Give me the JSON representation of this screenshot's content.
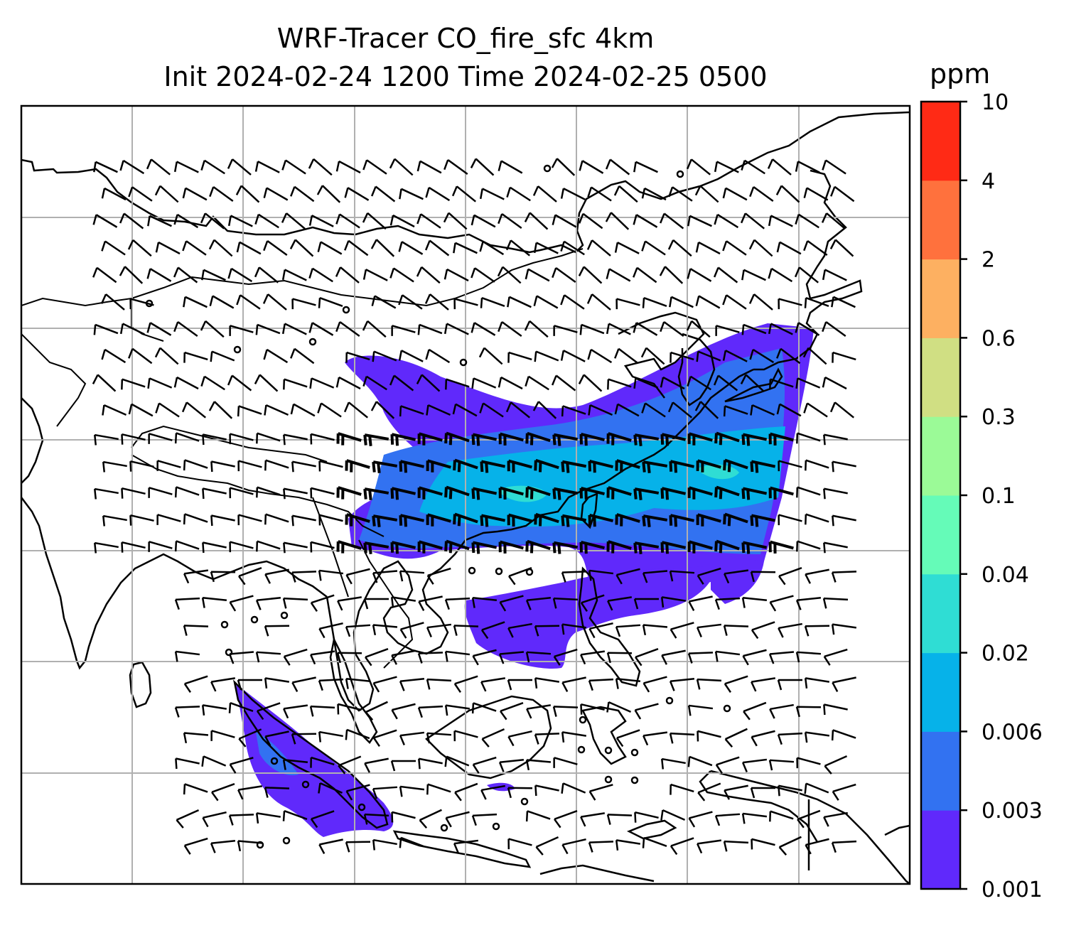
{
  "map": {
    "title_line1": "WRF-Tracer CO_fire_sfc 4km",
    "title_line2": "Init 2024-02-24 1200 Time 2024-02-25 0500",
    "variable": "CO_fire_sfc",
    "region": "East Asia / Southeast Asia",
    "features": [
      "coastlines",
      "country borders",
      "lat-lon gridlines",
      "wind barbs",
      "filled contours"
    ]
  },
  "colorbar": {
    "unit": "ppm",
    "levels": [
      "0.001",
      "0.003",
      "0.006",
      "0.02",
      "0.04",
      "0.1",
      "0.3",
      "0.6",
      "2",
      "4",
      "10"
    ],
    "colors": [
      "#6029fb",
      "#3272f1",
      "#06b2e9",
      "#2fddd4",
      "#65fbb8",
      "#9bfa97",
      "#d0df83",
      "#fdb061",
      "#ff713d",
      "#ff2a15"
    ]
  },
  "colors": {
    "grid": "#b0b0b0",
    "outline": "#000000"
  }
}
